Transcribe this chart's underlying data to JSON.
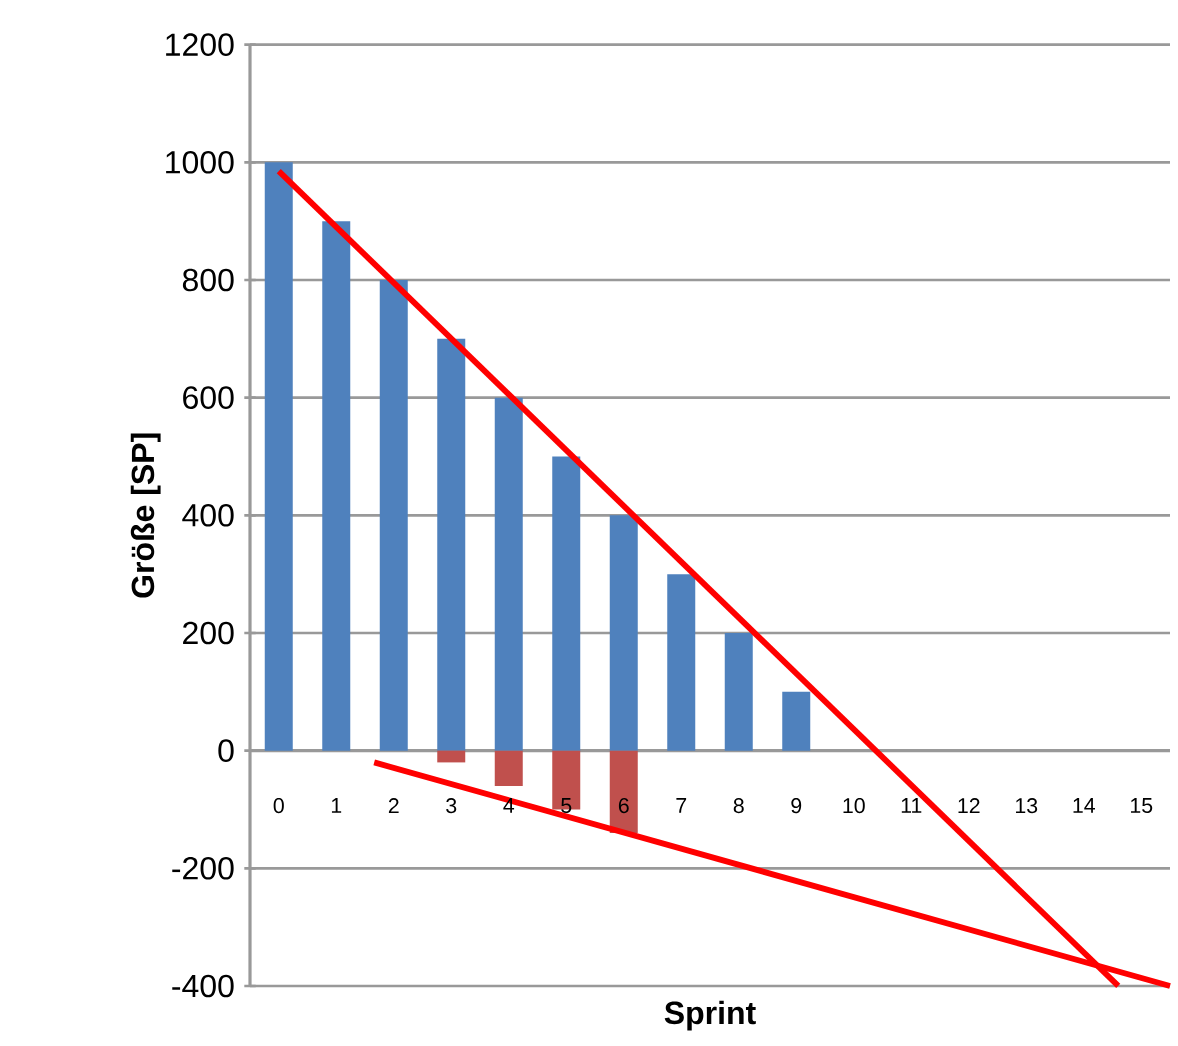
{
  "chart_data": {
    "type": "bar",
    "xlabel": "Sprint",
    "ylabel": "Größe [SP]",
    "x": [
      0,
      1,
      2,
      3,
      4,
      5,
      6,
      7,
      8,
      9
    ],
    "series": [
      {
        "color": "#4f81bd",
        "values": [
          1000,
          900,
          800,
          700,
          600,
          500,
          400,
          300,
          200,
          100
        ]
      },
      {
        "color": "#c0504d",
        "values": [
          null,
          null,
          null,
          -20,
          -60,
          -100,
          -140,
          null,
          null,
          null
        ]
      },
      {
        "type": "line",
        "color": "#ff0000",
        "x": [
          0,
          14.6
        ],
        "values": [
          985,
          -400
        ]
      },
      {
        "type": "line",
        "color": "#ff0000",
        "x": [
          1.66,
          15.5
        ],
        "values": [
          -20,
          -400
        ]
      }
    ],
    "xlim": [
      -0.5,
      15.5
    ],
    "xticks": [
      0,
      1,
      2,
      3,
      4,
      5,
      6,
      7,
      8,
      9,
      10,
      11,
      12,
      13,
      14,
      15
    ],
    "ylim": [
      -400,
      1200
    ],
    "yticks": [
      -400,
      -200,
      0,
      200,
      400,
      600,
      800,
      1000,
      1200
    ],
    "grid": "y",
    "marker": "none"
  }
}
